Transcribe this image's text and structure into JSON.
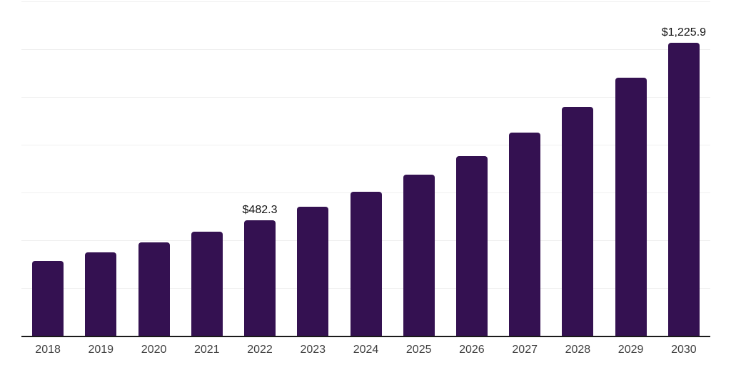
{
  "chart_data": {
    "type": "bar",
    "title": "",
    "xlabel": "",
    "ylabel": "",
    "categories": [
      "2018",
      "2019",
      "2020",
      "2021",
      "2022",
      "2023",
      "2024",
      "2025",
      "2026",
      "2027",
      "2028",
      "2029",
      "2030"
    ],
    "values": [
      315,
      350,
      390,
      436,
      482.3,
      540,
      603,
      675,
      752,
      850,
      958,
      1081,
      1225.9
    ],
    "labeled_points": [
      {
        "category": "2022",
        "label": "$482.3"
      },
      {
        "category": "2030",
        "label": "$1,225.9"
      }
    ],
    "ylim": [
      0,
      1400
    ],
    "gridline_step": 200,
    "grid": true,
    "legend_position": "none",
    "colors": {
      "bar": "#341151",
      "gridline": "#efefef",
      "axis_line": "#1a1a1a",
      "tick_label": "#404040",
      "data_label": "#111111",
      "background": "#ffffff"
    }
  }
}
